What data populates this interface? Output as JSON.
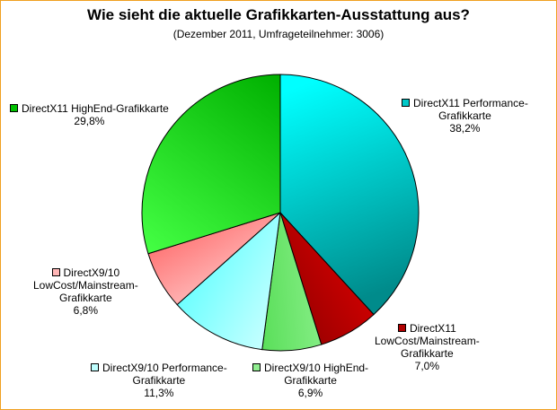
{
  "chart_data": {
    "type": "pie",
    "title": "Wie sieht die aktuelle Grafikkarten-Ausstattung aus?",
    "subtitle": "(Dezember 2011, Umfrageteilnehmer: 3006)",
    "start_angle_deg": 0,
    "direction": "clockwise",
    "slices": [
      {
        "label_lines": [
          "DirectX11 Performance-",
          "Grafikkarte"
        ],
        "value": 38.2,
        "value_label": "38,2%",
        "color_light": "#00ffff",
        "color_dark": "#008b8b",
        "swatch": "#00c8c8"
      },
      {
        "label_lines": [
          "DirectX11",
          "LowCost/Mainstream-",
          "Grafikkarte"
        ],
        "value": 7.0,
        "value_label": "7,0%",
        "color_light": "#ff0000",
        "color_dark": "#6b0000",
        "swatch": "#b00000"
      },
      {
        "label_lines": [
          "DirectX9/10 HighEnd-",
          "Grafikkarte"
        ],
        "value": 6.9,
        "value_label": "6,9%",
        "color_light": "#baffba",
        "color_dark": "#22cc22",
        "swatch": "#90ee90"
      },
      {
        "label_lines": [
          "DirectX9/10 Performance-",
          "Grafikkarte"
        ],
        "value": 11.3,
        "value_label": "11,3%",
        "color_light": "#ffffff",
        "color_dark": "#33ffff",
        "swatch": "#bfffff"
      },
      {
        "label_lines": [
          "DirectX9/10",
          "LowCost/Mainstream-",
          "Grafikkarte"
        ],
        "value": 6.8,
        "value_label": "6,8%",
        "color_light": "#ffffff",
        "color_dark": "#ff2a2a",
        "swatch": "#ffb6b6"
      },
      {
        "label_lines": [
          "DirectX11 HighEnd-Grafikkarte"
        ],
        "value": 29.8,
        "value_label": "29,8%",
        "color_light": "#44ff44",
        "color_dark": "#00b000",
        "swatch": "#00c000"
      }
    ]
  }
}
